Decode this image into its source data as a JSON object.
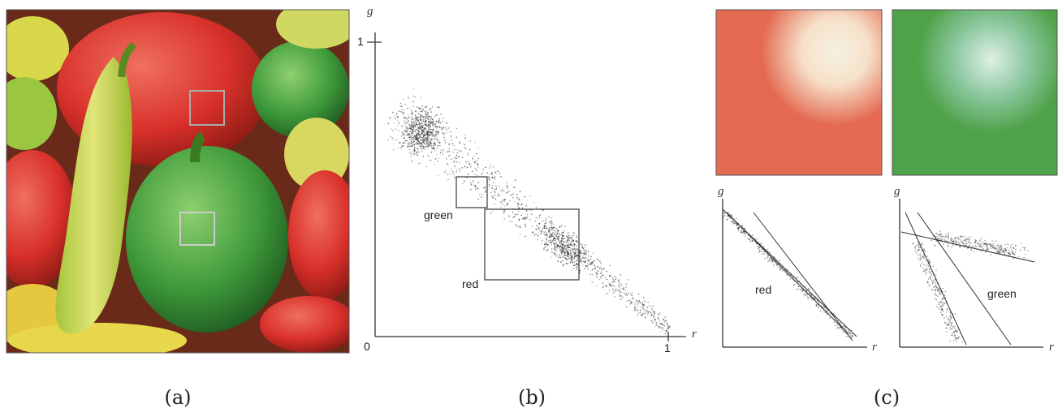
{
  "panel_a": {
    "caption": "(a)"
  },
  "panel_b": {
    "caption": "(b)",
    "x_axis_label": "r",
    "y_axis_label": "g",
    "x_origin_label": "0",
    "x_end_label": "1",
    "y_end_label": "1",
    "box_labels": [
      "green",
      "red"
    ]
  },
  "panel_c": {
    "caption": "(c)",
    "left_plot": {
      "x_axis_label": "r",
      "y_axis_label": "g",
      "label": "red"
    },
    "right_plot": {
      "x_axis_label": "r",
      "y_axis_label": "g",
      "label": "green"
    }
  }
}
